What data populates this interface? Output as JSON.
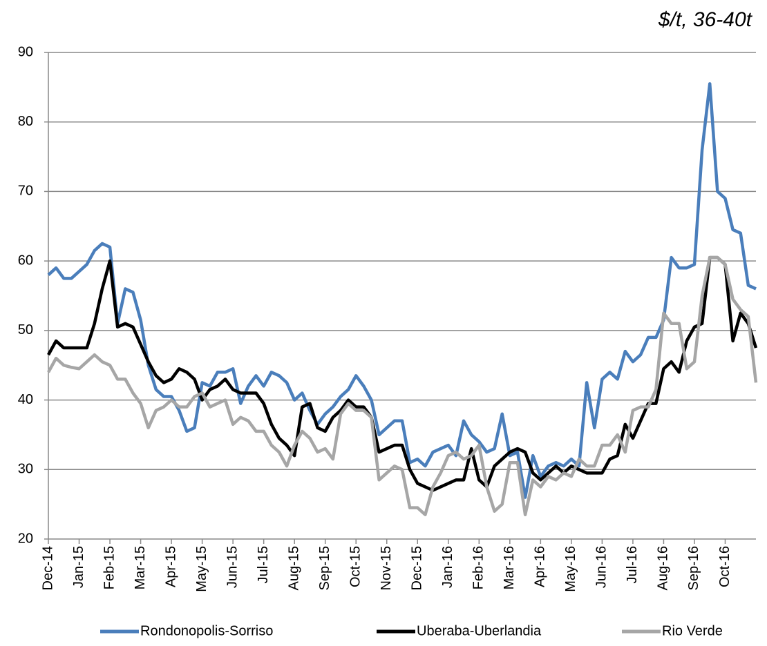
{
  "chart_data": {
    "type": "line",
    "annotation": "$/t, 36-40t",
    "categories": [
      "Dec-14",
      null,
      null,
      null,
      "Jan-15",
      null,
      null,
      null,
      "Feb-15",
      null,
      null,
      null,
      "Mar-15",
      null,
      null,
      null,
      "Apr-15",
      null,
      null,
      null,
      "May-15",
      null,
      null,
      null,
      "Jun-15",
      null,
      null,
      null,
      "Jul-15",
      null,
      null,
      null,
      "Aug-15",
      null,
      null,
      null,
      "Sep-15",
      null,
      null,
      null,
      "Oct-15",
      null,
      null,
      null,
      "Nov-15",
      null,
      null,
      null,
      "Dec-15",
      null,
      null,
      null,
      "Jan-16",
      null,
      null,
      null,
      "Feb-16",
      null,
      null,
      null,
      "Mar-16",
      null,
      null,
      null,
      "Apr-16",
      null,
      null,
      null,
      "May-16",
      null,
      null,
      null,
      "Jun-16",
      null,
      null,
      null,
      "Jul-16",
      null,
      null,
      null,
      "Aug-16",
      null,
      null,
      null,
      "Sep-16",
      null,
      null,
      null,
      "Oct-16",
      null,
      null,
      null,
      null
    ],
    "series": [
      {
        "name": "Rondonopolis-Sorriso",
        "color": "#4a7ebb",
        "values": [
          58,
          59,
          57.5,
          57.5,
          58.5,
          59.5,
          61.5,
          62.5,
          62,
          51,
          56,
          55.5,
          51.5,
          45,
          41.5,
          40.5,
          40.5,
          38.5,
          35.5,
          36,
          42.5,
          42,
          44,
          44,
          44.5,
          39.5,
          42,
          43.5,
          42,
          44,
          43.5,
          42.5,
          40,
          41,
          38.5,
          36.5,
          38,
          39,
          40.5,
          41.5,
          43.5,
          42,
          40,
          35,
          36,
          37,
          37,
          31,
          31.5,
          30.5,
          32.5,
          33,
          33.5,
          32,
          37,
          35,
          34,
          32.5,
          33,
          38,
          32,
          32.5,
          26,
          32,
          29,
          30.5,
          31,
          30.5,
          31.5,
          30.5,
          42.5,
          36,
          43,
          44,
          43,
          47,
          45.5,
          46.5,
          49,
          49,
          51.5,
          60.5,
          59,
          59,
          59.5,
          76,
          85.5,
          70,
          69,
          64.5,
          64,
          56.5,
          56
        ]
      },
      {
        "name": "Uberaba-Uberlandia",
        "color": "#000000",
        "values": [
          46.5,
          48.5,
          47.5,
          47.5,
          47.5,
          47.5,
          51,
          56,
          60,
          50.5,
          51,
          50.5,
          48,
          45.5,
          43.5,
          42.5,
          43,
          44.5,
          44,
          43,
          40,
          41.5,
          42,
          43,
          41.5,
          41,
          41,
          41,
          39.5,
          36.5,
          34.5,
          33.5,
          32,
          39,
          39.5,
          36,
          35.5,
          37.5,
          38.5,
          40,
          39,
          39,
          37.5,
          32.5,
          33,
          33.5,
          33.5,
          30,
          28,
          27.5,
          27,
          27.5,
          28,
          28.5,
          28.5,
          33,
          28.5,
          27.5,
          30.5,
          31.5,
          32.5,
          33,
          32.5,
          29.5,
          28.5,
          29.5,
          30.5,
          29.5,
          30.5,
          30,
          29.5,
          29.5,
          29.5,
          31.5,
          32,
          36.5,
          34.5,
          37,
          39.5,
          39.5,
          44.5,
          45.5,
          44,
          48.5,
          50.5,
          51,
          60.5,
          60.5,
          59.5,
          48.5,
          52.5,
          51,
          47.5
        ]
      },
      {
        "name": "Rio Verde",
        "color": "#a6a6a6",
        "values": [
          44,
          46,
          45,
          44.7,
          44.5,
          45.5,
          46.5,
          45.5,
          45,
          43,
          43,
          41,
          39.5,
          36,
          38.5,
          39,
          40,
          39,
          39,
          40.5,
          41,
          39,
          39.5,
          40,
          36.5,
          37.5,
          37,
          35.5,
          35.5,
          33.5,
          32.5,
          30.5,
          33.5,
          35.5,
          34.5,
          32.5,
          33,
          31.5,
          38,
          39.5,
          38.5,
          38.5,
          37.5,
          28.5,
          29.5,
          30.5,
          30,
          24.5,
          24.5,
          23.5,
          27.5,
          29.5,
          32,
          32.5,
          31.5,
          32,
          33.5,
          27.5,
          24,
          25,
          31,
          31,
          23.5,
          28.5,
          27.5,
          29,
          28.5,
          29.5,
          29,
          31.5,
          30.5,
          30.5,
          33.5,
          33.5,
          35,
          32.5,
          38.5,
          39,
          39,
          41.5,
          52.5,
          51,
          51,
          44.5,
          45.5,
          55,
          60.5,
          60.5,
          59.5,
          54.5,
          53,
          52,
          42.5
        ]
      }
    ],
    "ylim": [
      20,
      90
    ],
    "yticks": [
      20,
      30,
      40,
      50,
      60,
      70,
      80,
      90
    ],
    "grid": true,
    "legend": "bottom"
  }
}
